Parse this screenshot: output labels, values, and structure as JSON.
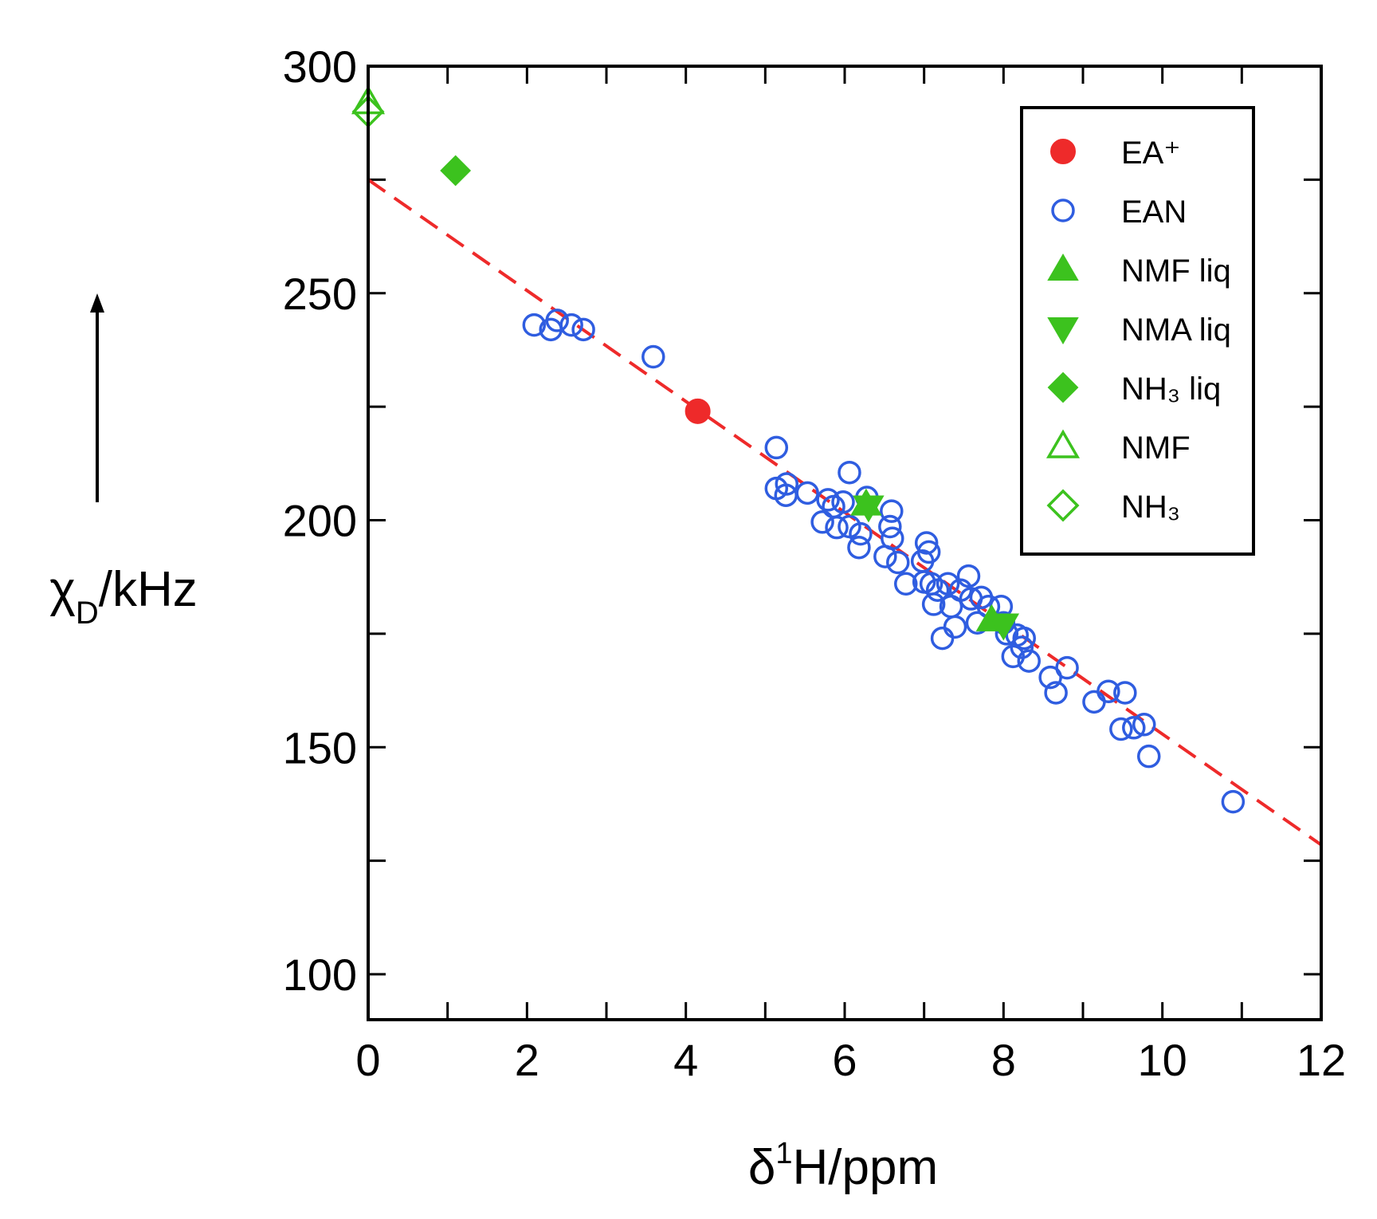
{
  "chart_data": {
    "type": "scatter",
    "x_label": {
      "symbol": "δ",
      "sup": "1",
      "text": "H/ppm"
    },
    "y_label": {
      "symbol": "χ",
      "sub": "D",
      "text": "/kHz"
    },
    "xlim": [
      0,
      12
    ],
    "ylim": [
      90,
      300
    ],
    "xticks": [
      0,
      2,
      4,
      6,
      8,
      10,
      12
    ],
    "xminor": [
      1,
      3,
      5,
      7,
      9,
      11
    ],
    "yticks": [
      100,
      150,
      200,
      250,
      300
    ],
    "yminor": [
      125,
      175,
      225,
      275
    ],
    "legend": "upper right",
    "fit_line": {
      "color": "#ee2a2a",
      "x": [
        0,
        12
      ],
      "values": [
        275,
        128.5
      ]
    },
    "series": [
      {
        "name": "EA⁺",
        "color": "#ee2a2a",
        "marker": "circle",
        "filled": true,
        "x": [
          4.15
        ],
        "values": [
          224
        ]
      },
      {
        "name": "EAN",
        "color": "#2f5de0",
        "marker": "circle",
        "filled": false,
        "x": [
          2.09,
          2.3,
          2.38,
          2.56,
          2.71,
          3.59,
          5.14,
          5.14,
          5.27,
          5.26,
          5.53,
          5.79,
          5.72,
          5.86,
          5.9,
          5.98,
          6.06,
          6.06,
          6.2,
          6.28,
          6.18,
          6.59,
          6.57,
          6.6,
          6.51,
          6.67,
          6.77,
          6.98,
          7.03,
          7.06,
          7.0,
          7.09,
          7.12,
          7.17,
          7.23,
          7.3,
          7.39,
          7.34,
          7.46,
          7.56,
          7.59,
          7.67,
          7.72,
          7.81,
          7.97,
          8.0,
          8.04,
          8.12,
          8.17,
          8.26,
          8.23,
          8.32,
          8.59,
          8.66,
          8.8,
          9.14,
          9.32,
          9.53,
          9.48,
          9.64,
          9.77,
          9.83,
          10.89
        ],
        "values": [
          243,
          242,
          244,
          243,
          242,
          236,
          216,
          207,
          208,
          205.5,
          206,
          204.5,
          199.6,
          203,
          198.4,
          204,
          210.5,
          198.6,
          197,
          205,
          194,
          202,
          198.6,
          196,
          192,
          190.7,
          186,
          191,
          195,
          193,
          186.4,
          186,
          181.5,
          184.6,
          174,
          186,
          176.5,
          181,
          184.6,
          187.7,
          182.7,
          177.4,
          183,
          181,
          181,
          177.4,
          175,
          170,
          174.7,
          174,
          172,
          169,
          165.4,
          162,
          167.5,
          160,
          162.3,
          162,
          154,
          154.3,
          155,
          148,
          138
        ]
      },
      {
        "name": "NMF liq",
        "color": "#3cc21e",
        "marker": "triangle-up",
        "filled": true,
        "x": [
          6.27,
          7.85
        ],
        "values": [
          203.5,
          178
        ]
      },
      {
        "name": "NMA liq",
        "color": "#3cc21e",
        "marker": "triangle-down",
        "filled": true,
        "x": [
          6.3,
          8.0
        ],
        "values": [
          203,
          177
        ]
      },
      {
        "name": "NH₃ liq",
        "color": "#3cc21e",
        "marker": "diamond",
        "filled": true,
        "x": [
          1.1
        ],
        "values": [
          277
        ]
      },
      {
        "name": "NMF",
        "color": "#3cc21e",
        "marker": "triangle-up",
        "filled": false,
        "x": [
          0
        ],
        "values": [
          292
        ]
      },
      {
        "name": "NH₃",
        "color": "#3cc21e",
        "marker": "diamond",
        "filled": false,
        "x": [
          0
        ],
        "values": [
          290
        ]
      }
    ]
  }
}
